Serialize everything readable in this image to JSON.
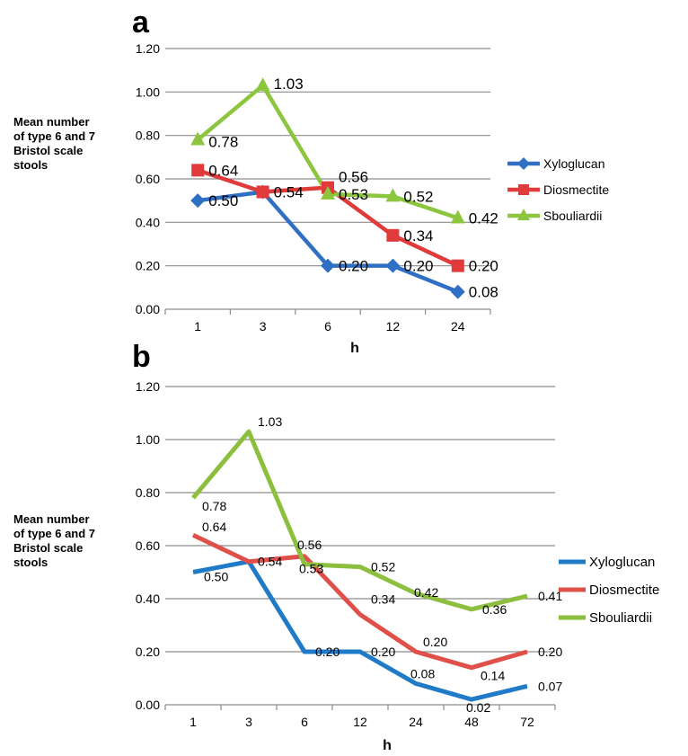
{
  "chart_data": [
    {
      "panel": "a",
      "type": "line",
      "markers": true,
      "ylabel": [
        "Mean number",
        "of type 6 and 7",
        "Bristol scale",
        "stools"
      ],
      "xlabel": "h",
      "categories": [
        "1",
        "3",
        "6",
        "12",
        "24"
      ],
      "ylim": [
        0,
        1.2
      ],
      "yticks": [
        "0.00",
        "0.20",
        "0.40",
        "0.60",
        "0.80",
        "1.00",
        "1.20"
      ],
      "grid": true,
      "legend_position": "right",
      "series": [
        {
          "name": "Xyloglucan",
          "color": "#2f6fc4",
          "marker": "diamond",
          "values": [
            0.5,
            0.54,
            0.2,
            0.2,
            0.08
          ],
          "labels": [
            "0.50",
            null,
            "0.20",
            "0.20",
            "0.08"
          ]
        },
        {
          "name": "Diosmectite",
          "color": "#e03a3a",
          "marker": "square",
          "values": [
            0.64,
            0.54,
            0.56,
            0.34,
            0.2
          ],
          "labels": [
            "0.64",
            "0.54",
            "0.56",
            "0.34",
            "0.20"
          ]
        },
        {
          "name": "Sbouliardii",
          "color": "#8cc63f",
          "marker": "triangle",
          "values": [
            0.78,
            1.03,
            0.53,
            0.52,
            0.42
          ],
          "labels": [
            "0.78",
            "1.03",
            "0.53",
            "0.52",
            "0.42"
          ]
        }
      ]
    },
    {
      "panel": "b",
      "type": "line",
      "markers": false,
      "ylabel": [
        "Mean number",
        "of type 6 and 7",
        "Bristol scale",
        "stools"
      ],
      "xlabel": "h",
      "categories": [
        "1",
        "3",
        "6",
        "12",
        "24",
        "48",
        "72"
      ],
      "ylim": [
        0,
        1.2
      ],
      "yticks": [
        "0.00",
        "0.20",
        "0.40",
        "0.60",
        "0.80",
        "1.00",
        "1.20"
      ],
      "grid": true,
      "legend_position": "right",
      "series": [
        {
          "name": "Xyloglucan",
          "color": "#1f7bc8",
          "values": [
            0.5,
            0.54,
            0.2,
            0.2,
            0.08,
            0.02,
            0.07
          ],
          "labels": [
            "0.50",
            null,
            "0.20",
            "0.20",
            "0.08",
            "0.02",
            "0.07"
          ]
        },
        {
          "name": "Diosmectite",
          "color": "#e0504a",
          "values": [
            0.64,
            0.54,
            0.56,
            0.34,
            0.2,
            0.14,
            0.2
          ],
          "labels": [
            "0.64",
            "0.54",
            "0.56",
            "0.34",
            "0.20",
            "0.14",
            "0.20"
          ]
        },
        {
          "name": "Sbouliardii",
          "color": "#8dbf3f",
          "values": [
            0.78,
            1.03,
            0.53,
            0.52,
            0.42,
            0.36,
            0.41
          ],
          "labels": [
            "0.78",
            "1.03",
            "0.53",
            "0.52",
            "0.42",
            "0.36",
            "0.41"
          ]
        }
      ]
    }
  ]
}
